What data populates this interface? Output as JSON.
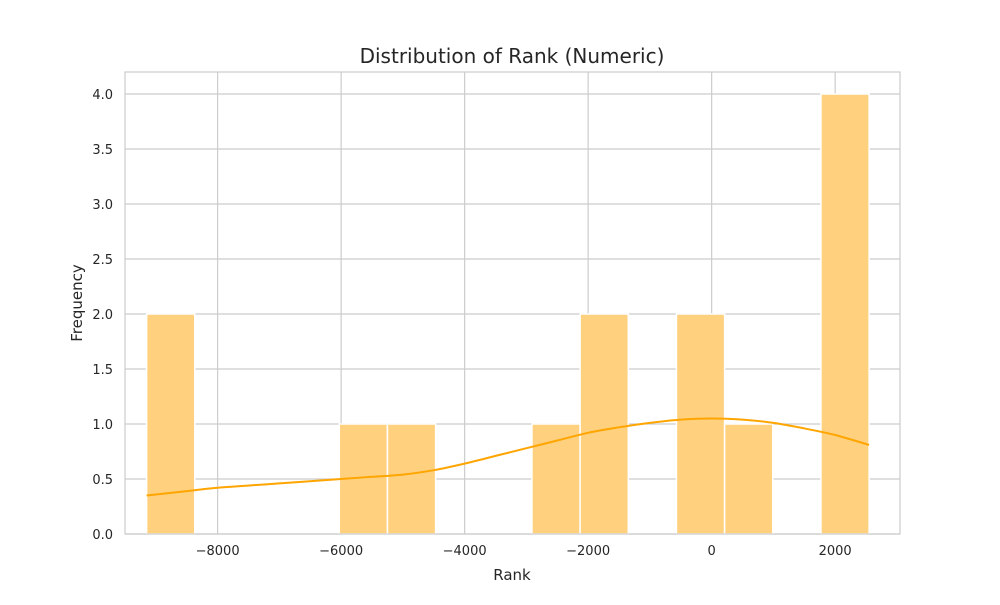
{
  "chart_data": {
    "type": "bar",
    "title": "Distribution of Rank (Numeric)",
    "xlabel": "Rank",
    "ylabel": "Frequency",
    "xlim": [
      -9500,
      3050
    ],
    "ylim": [
      0,
      4.2
    ],
    "x_ticks": [
      -8000,
      -6000,
      -4000,
      -2000,
      0,
      2000
    ],
    "x_tick_labels": [
      "−8000",
      "−6000",
      "−4000",
      "−2000",
      "0",
      "2000"
    ],
    "y_ticks": [
      0,
      0.5,
      1,
      1.5,
      2,
      2.5,
      3,
      3.5,
      4
    ],
    "y_tick_labels": [
      "0.0",
      "0.5",
      "1.0",
      "1.5",
      "2.0",
      "2.5",
      "3.0",
      "3.5",
      "4.0"
    ],
    "grid": true,
    "bins": [
      {
        "x0": -9150,
        "x1": -8370,
        "count": 2
      },
      {
        "x0": -8370,
        "x1": -7590,
        "count": 0
      },
      {
        "x0": -7590,
        "x1": -6810,
        "count": 0
      },
      {
        "x0": -6810,
        "x1": -6030,
        "count": 0
      },
      {
        "x0": -6030,
        "x1": -5250,
        "count": 1
      },
      {
        "x0": -5250,
        "x1": -4470,
        "count": 1
      },
      {
        "x0": -4470,
        "x1": -3690,
        "count": 0
      },
      {
        "x0": -3690,
        "x1": -2910,
        "count": 0
      },
      {
        "x0": -2910,
        "x1": -2130,
        "count": 1
      },
      {
        "x0": -2130,
        "x1": -1350,
        "count": 2
      },
      {
        "x0": -1350,
        "x1": -570,
        "count": 0
      },
      {
        "x0": -570,
        "x1": 210,
        "count": 2
      },
      {
        "x0": 210,
        "x1": 990,
        "count": 1
      },
      {
        "x0": 990,
        "x1": 1770,
        "count": 0
      },
      {
        "x0": 1770,
        "x1": 2550,
        "count": 4
      }
    ],
    "kde": {
      "x": [
        -9150,
        -8500,
        -8000,
        -7000,
        -6000,
        -5500,
        -5000,
        -4500,
        -4000,
        -3500,
        -3000,
        -2500,
        -2000,
        -1500,
        -1000,
        -500,
        0,
        500,
        1000,
        1500,
        2000,
        2550
      ],
      "y": [
        0.35,
        0.39,
        0.42,
        0.46,
        0.5,
        0.52,
        0.54,
        0.58,
        0.64,
        0.71,
        0.78,
        0.85,
        0.92,
        0.97,
        1.01,
        1.04,
        1.05,
        1.04,
        1.01,
        0.96,
        0.9,
        0.81
      ]
    },
    "colors": {
      "bar_fill": "#ffd17f",
      "bar_stroke": "#ffffff",
      "kde_line": "#ffa500",
      "grid": "#cccccc",
      "axes_edge": "#cccccc"
    }
  }
}
